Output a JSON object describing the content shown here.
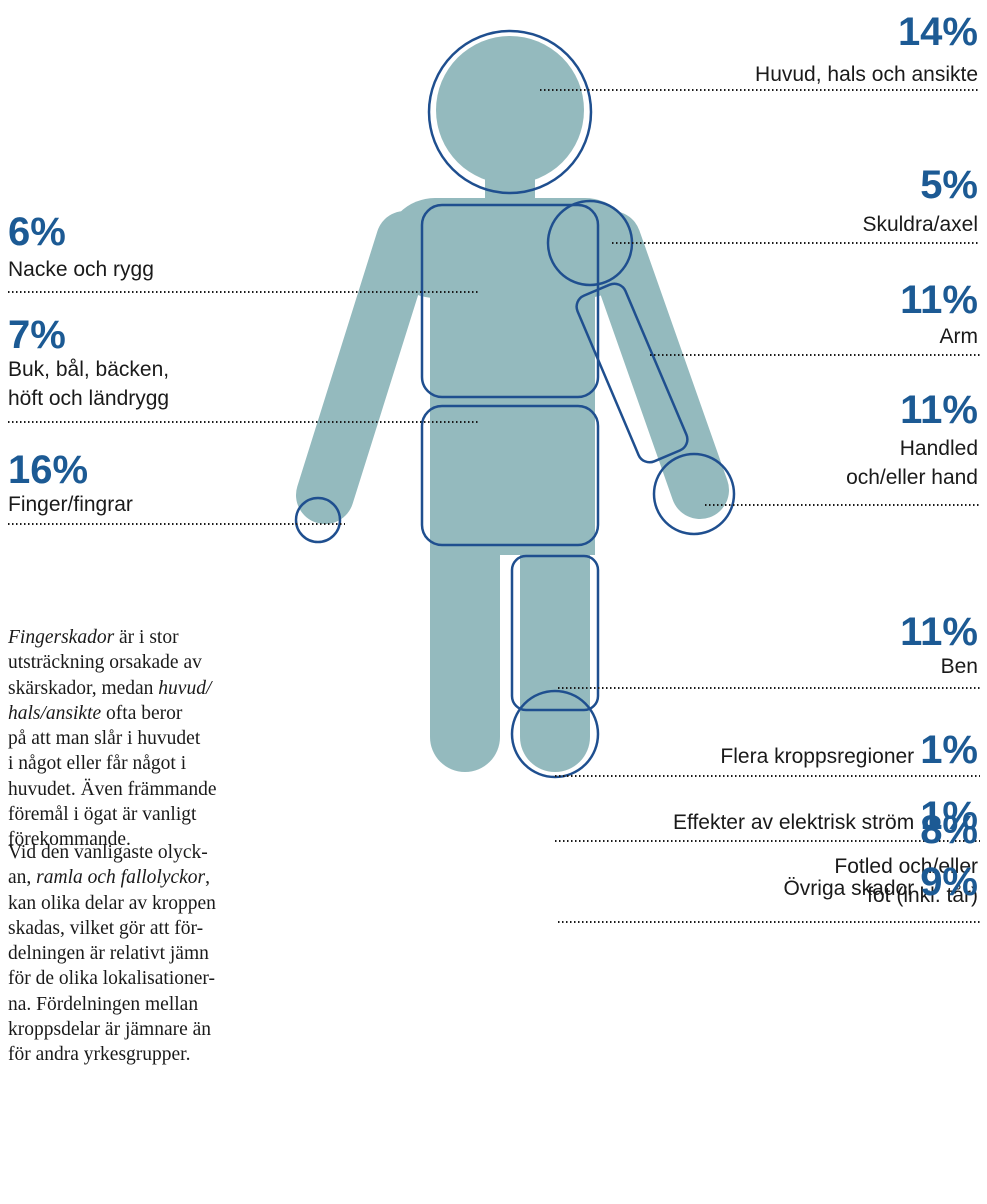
{
  "right_regions": [
    {
      "percent": "14%",
      "label": "Huvud, hals och ansikte"
    },
    {
      "percent": "5%",
      "label": "Skuldra/axel"
    },
    {
      "percent": "11%",
      "label": "Arm"
    },
    {
      "percent": "11%",
      "label": "Handled\noch/eller hand"
    },
    {
      "percent": "11%",
      "label": "Ben"
    },
    {
      "percent": "8%",
      "label": "Fotled och/eller\nfot (inkl. tår)"
    }
  ],
  "left_regions": [
    {
      "percent": "6%",
      "label": "Nacke och rygg"
    },
    {
      "percent": "7%",
      "label": "Buk, bål, bäcken,\nhöft och ländrygg"
    },
    {
      "percent": "16%",
      "label": "Finger/fingrar"
    }
  ],
  "other_regions": [
    {
      "label": "Flera kroppsregioner",
      "percent": "1%"
    },
    {
      "label": "Effekter av elektrisk ström",
      "percent": "1%"
    },
    {
      "label": "Övriga skador",
      "percent": "9%"
    }
  ],
  "paragraphs": [
    [
      [
        {
          "text": "Fingerskador",
          "italic": true
        },
        {
          "text": " är i stor"
        }
      ],
      [
        {
          "text": "utsträckning orsakade av"
        }
      ],
      [
        {
          "text": "skärskador, medan "
        },
        {
          "text": "huvud/",
          "italic": true
        }
      ],
      [
        {
          "text": "hals/ansikte",
          "italic": true
        },
        {
          "text": " ofta beror"
        }
      ],
      [
        {
          "text": "på att man slår i huvudet"
        }
      ],
      [
        {
          "text": "i något eller får något i"
        }
      ],
      [
        {
          "text": "huvudet. Även främmande"
        }
      ],
      [
        {
          "text": "föremål i ögat är vanligt"
        }
      ],
      [
        {
          "text": "förekommande."
        }
      ]
    ],
    [
      [
        {
          "text": "Vid den vanligaste olyck-"
        }
      ],
      [
        {
          "text": "an, "
        },
        {
          "text": "ramla och fallolyckor",
          "italic": true
        },
        {
          "text": ","
        }
      ],
      [
        {
          "text": "kan olika delar av kroppen"
        }
      ],
      [
        {
          "text": "skadas, vilket gör att för-"
        }
      ],
      [
        {
          "text": "delningen är relativt jämn"
        }
      ],
      [
        {
          "text": "för de olika lokalisationer-"
        }
      ],
      [
        {
          "text": "na. Fördelningen mellan"
        }
      ],
      [
        {
          "text": "kroppsdelar är jämnare än"
        }
      ],
      [
        {
          "text": "för andra yrkesgrupper."
        }
      ]
    ]
  ]
}
